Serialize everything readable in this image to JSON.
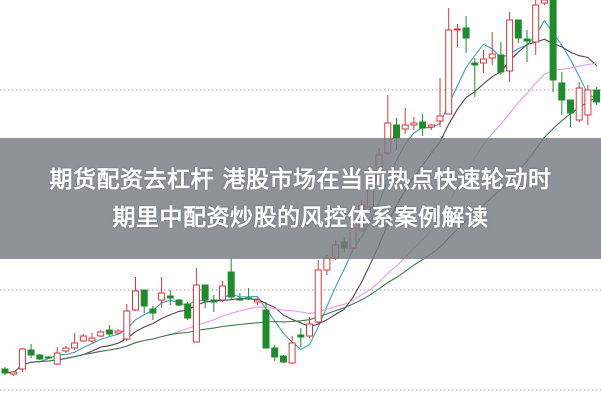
{
  "headline": {
    "line1": "期货配资去杠杆 港股市场在当前热点快速轮动时",
    "line2": "期里中配资炒股的风控体系案例解读"
  },
  "chart_data": {
    "type": "candlestick",
    "ylim": [
      0,
      40
    ],
    "grid": "horizontal-dotted",
    "colors": {
      "up": "#d9363e",
      "down": "#1e8c2a",
      "ma": [
        "#3aa0b8",
        "#5b3a5e",
        "#e69ae6",
        "#3d7a4a"
      ],
      "grid": "#999999"
    },
    "ma_periods": [
      5,
      10,
      20,
      30
    ],
    "candles": [
      [
        3.1,
        3.3,
        2.5,
        2.7
      ],
      [
        2.6,
        2.9,
        2.4,
        2.8
      ],
      [
        3.1,
        5.2,
        2.8,
        5.1
      ],
      [
        5.0,
        5.6,
        4.2,
        4.5
      ],
      [
        4.5,
        4.6,
        4.0,
        4.1
      ],
      [
        4.3,
        4.4,
        4.1,
        4.2
      ],
      [
        3.6,
        5.3,
        3.5,
        4.7
      ],
      [
        4.9,
        5.4,
        4.7,
        5.2
      ],
      [
        5.2,
        6.7,
        5.0,
        5.7
      ],
      [
        5.9,
        6.6,
        5.8,
        6.4
      ],
      [
        5.9,
        6.7,
        5.6,
        6.2
      ],
      [
        6.4,
        7.0,
        6.3,
        6.8
      ],
      [
        7.0,
        7.5,
        6.4,
        6.6
      ],
      [
        6.7,
        7.1,
        6.6,
        6.9
      ],
      [
        6.1,
        9.6,
        5.9,
        8.9
      ],
      [
        9.0,
        12.3,
        8.9,
        10.9
      ],
      [
        11.0,
        11.0,
        8.7,
        9.4
      ],
      [
        9.1,
        9.4,
        8.0,
        8.7
      ],
      [
        10.0,
        12.3,
        9.2,
        10.7
      ],
      [
        10.4,
        11.0,
        9.5,
        10.2
      ],
      [
        10.0,
        10.1,
        9.4,
        9.5
      ],
      [
        9.6,
        9.8,
        8.0,
        8.2
      ],
      [
        5.8,
        13.2,
        5.8,
        11.5
      ],
      [
        11.5,
        11.5,
        9.2,
        10.0
      ],
      [
        10.0,
        10.5,
        8.8,
        9.8
      ],
      [
        10.0,
        11.9,
        9.8,
        11.4
      ],
      [
        12.8,
        14.2,
        10.0,
        10.3
      ],
      [
        10.1,
        10.7,
        9.9,
        10.0
      ],
      [
        10.2,
        11.2,
        10.0,
        10.1
      ],
      [
        9.8,
        10.2,
        9.5,
        10.0
      ],
      [
        9.0,
        9.8,
        5.2,
        5.2
      ],
      [
        5.2,
        5.5,
        3.9,
        4.3
      ],
      [
        4.4,
        4.5,
        3.7,
        3.8
      ],
      [
        3.7,
        6.4,
        3.6,
        5.7
      ],
      [
        6.5,
        7.2,
        5.3,
        6.3
      ],
      [
        6.4,
        8.3,
        6.2,
        7.6
      ],
      [
        7.8,
        14.0,
        7.6,
        13.0
      ],
      [
        13.0,
        14.5,
        12.5,
        14.2
      ],
      [
        14.2,
        16.0,
        14.0,
        15.5
      ],
      [
        15.8,
        16.3,
        14.8,
        15.2
      ],
      [
        15.2,
        17.8,
        15.0,
        17.2
      ],
      [
        17.0,
        20.0,
        16.8,
        19.5
      ],
      [
        19.3,
        22.6,
        19.0,
        22.0
      ],
      [
        22.0,
        25.2,
        21.8,
        24.5
      ],
      [
        24.7,
        30.5,
        24.5,
        27.7
      ],
      [
        27.5,
        28.2,
        25.0,
        26.2
      ],
      [
        27.1,
        29.2,
        26.6,
        27.5
      ],
      [
        27.5,
        28.3,
        27.0,
        27.7
      ],
      [
        27.8,
        28.6,
        26.4,
        27.2
      ],
      [
        27.3,
        27.6,
        27.0,
        27.5
      ],
      [
        27.9,
        32.2,
        27.3,
        28.4
      ],
      [
        28.6,
        39.2,
        28.6,
        37.0
      ],
      [
        37.0,
        37.6,
        35.3,
        37.1
      ],
      [
        37.2,
        38.4,
        34.7,
        36.2
      ],
      [
        33.7,
        34.2,
        30.3,
        33.5
      ],
      [
        33.7,
        35.0,
        32.7,
        34.1
      ],
      [
        34.2,
        36.8,
        33.5,
        34.6
      ],
      [
        34.5,
        35.8,
        32.5,
        32.8
      ],
      [
        32.9,
        38.8,
        31.8,
        38.0
      ],
      [
        38.0,
        38.0,
        35.7,
        36.2
      ],
      [
        36.1,
        37.0,
        33.8,
        35.9
      ],
      [
        35.8,
        40.0,
        34.5,
        39.5
      ],
      [
        39.7,
        40.0,
        39.5,
        40.0
      ],
      [
        40.0,
        40.0,
        30.8,
        32.0
      ],
      [
        31.7,
        32.8,
        28.5,
        30.0
      ],
      [
        30.0,
        30.0,
        27.3,
        28.7
      ],
      [
        28.0,
        31.8,
        27.8,
        31.2
      ],
      [
        28.5,
        31.5,
        27.5,
        31.0
      ],
      [
        31.0,
        31.3,
        29.5,
        29.8
      ]
    ]
  }
}
